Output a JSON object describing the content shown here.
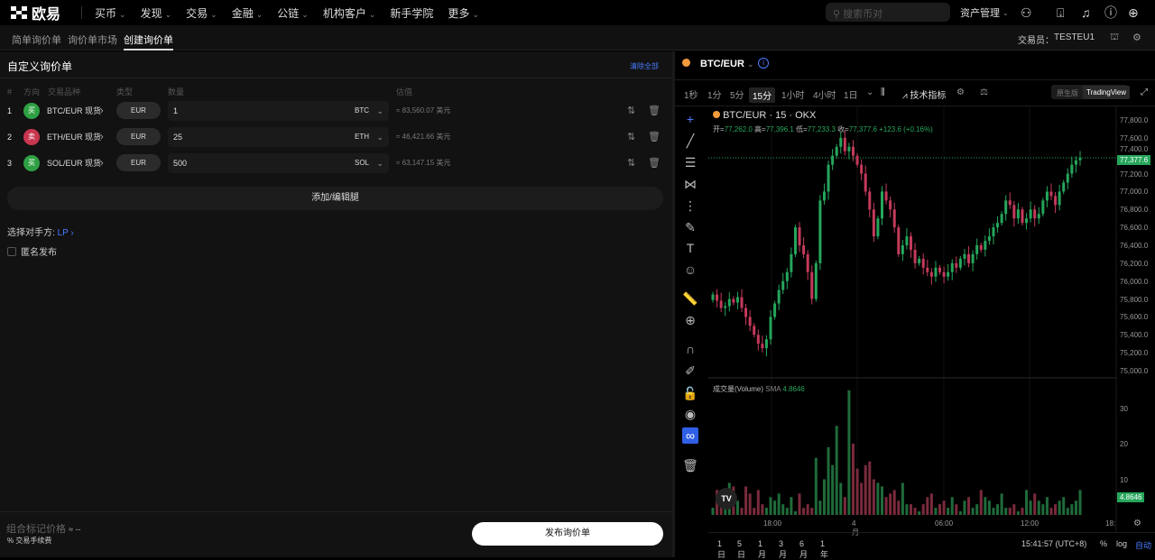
{
  "brand": "欧易",
  "nav": [
    "买币",
    "发现",
    "交易",
    "金融",
    "公链",
    "机构客户",
    "新手学院",
    "更多"
  ],
  "nav_has_chevron": [
    true,
    true,
    true,
    true,
    true,
    true,
    false,
    true
  ],
  "search": {
    "placeholder": "搜索币对"
  },
  "asset_mgmt": "资产管理",
  "subtabs": [
    "简单询价单",
    "询价单市场",
    "创建询价单"
  ],
  "active_subtab": "创建询价单",
  "trader_label": "交易员：",
  "trader": "TESTEU1",
  "form": {
    "title": "自定义询价单",
    "clear_all": "清除全部",
    "headers": [
      "#",
      "方向",
      "交易品种",
      "类型",
      "数量",
      "估值"
    ],
    "legs": [
      {
        "n": "1",
        "side": "买",
        "side_color": "#2ea043",
        "instrument": "BTC/EUR 现货",
        "type": "EUR",
        "qty": "1",
        "unit": "BTC",
        "value": "≈ 83,560.07 美元"
      },
      {
        "n": "2",
        "side": "卖",
        "side_color": "#c9364f",
        "instrument": "ETH/EUR 现货",
        "type": "EUR",
        "qty": "25",
        "unit": "ETH",
        "value": "≈ 46,421.66 美元"
      },
      {
        "n": "3",
        "side": "买",
        "side_color": "#2ea043",
        "instrument": "SOL/EUR 现货",
        "type": "EUR",
        "qty": "500",
        "unit": "SOL",
        "value": "≈ 63,147.15 美元"
      }
    ],
    "add_leg": "添加/编辑腿",
    "counterparty_label": "选择对手方:",
    "counterparty": "LP",
    "anonymous": "匿名发布",
    "mark_price_label": "组合标记价格",
    "mark_price": "≈ --",
    "fee": "% 交易手续费",
    "submit": "发布询价单"
  },
  "chart": {
    "symbol": "BTC/EUR",
    "timeframes": [
      "1秒",
      "1分",
      "5分",
      "15分",
      "1小时",
      "4小时",
      "1日"
    ],
    "active_tf": "15分",
    "indicators": "技术指标",
    "mode_native": "原生版",
    "mode_tv": "TradingView",
    "legend_title": "BTC/EUR · 15 · OKX",
    "ohlc": {
      "o_label": "开=",
      "o": "77,262.0",
      "h_label": "高=",
      "h": "77,396.1",
      "l_label": "低=",
      "l": "77,233.3",
      "c_label": "收=",
      "c": "77,377.6",
      "chg": "+123.6 (+0.16%)"
    },
    "last_price": "77,377.6",
    "price_ticks": [
      "77,800.0",
      "77,600.0",
      "77,400.0",
      "77,200.0",
      "77,000.0",
      "76,800.0",
      "76,600.0",
      "76,400.0",
      "76,200.0",
      "76,000.0",
      "75,800.0",
      "75,600.0",
      "75,400.0",
      "75,200.0",
      "75,000.0"
    ],
    "volume_label": "成交量(Volume)",
    "sma_label": "SMA",
    "sma": "4.8646",
    "volume_ticks": [
      "30",
      "20",
      "10"
    ],
    "time_ticks": [
      "18:00",
      "4月",
      "06:00",
      "12:00",
      "18:"
    ],
    "ranges": [
      "1日",
      "5日",
      "1月",
      "3月",
      "6月",
      "1年"
    ],
    "clock": "15:41:57 (UTC+8)",
    "pct": "%",
    "log": "log",
    "auto": "自动",
    "up_color": "#26a65b",
    "down_color": "#c43a5a"
  },
  "chart_data": {
    "type": "candlestick",
    "ylim": [
      75000,
      77800
    ],
    "closes": [
      75850,
      75780,
      75700,
      75720,
      75800,
      75760,
      75820,
      75700,
      75600,
      75500,
      75400,
      75300,
      75250,
      75350,
      75600,
      75750,
      75900,
      76000,
      76100,
      76300,
      76600,
      76400,
      76300,
      76100,
      75800,
      76200,
      76900,
      77000,
      77300,
      77400,
      77500,
      77600,
      77450,
      77500,
      77400,
      77300,
      77200,
      77000,
      76800,
      76500,
      76700,
      77000,
      76900,
      76800,
      76600,
      76300,
      76400,
      76500,
      76350,
      76200,
      76250,
      76150,
      76100,
      76050,
      76150,
      76100,
      76050,
      76100,
      76200,
      76150,
      76250,
      76300,
      76200,
      76300,
      76400,
      76350,
      76450,
      76500,
      76600,
      76650,
      76750,
      76900,
      76850,
      76700,
      76800,
      76650,
      76700,
      76800,
      76700,
      76750,
      76900,
      77000,
      76950,
      76850,
      77000,
      77100,
      77200,
      77300,
      77350,
      77377.6
    ],
    "volumes": [
      2,
      7,
      6,
      3,
      9,
      8,
      4,
      2,
      8,
      6,
      2,
      7,
      3,
      2,
      5,
      4,
      6,
      3,
      2,
      5,
      1,
      6,
      2,
      3,
      2,
      16,
      4,
      10,
      19,
      14,
      25,
      9,
      5,
      35,
      20,
      13,
      9,
      14,
      15,
      10,
      9,
      8,
      5,
      6,
      7,
      4,
      9,
      3,
      3,
      2,
      1,
      3,
      5,
      6,
      2,
      3,
      4,
      2,
      5,
      3,
      1,
      4,
      5,
      2,
      3,
      7,
      5,
      4,
      2,
      3,
      6,
      2,
      2,
      3,
      1,
      2,
      7,
      4,
      6,
      4,
      3,
      5,
      2,
      3,
      4,
      5,
      2,
      3,
      4,
      7
    ]
  }
}
